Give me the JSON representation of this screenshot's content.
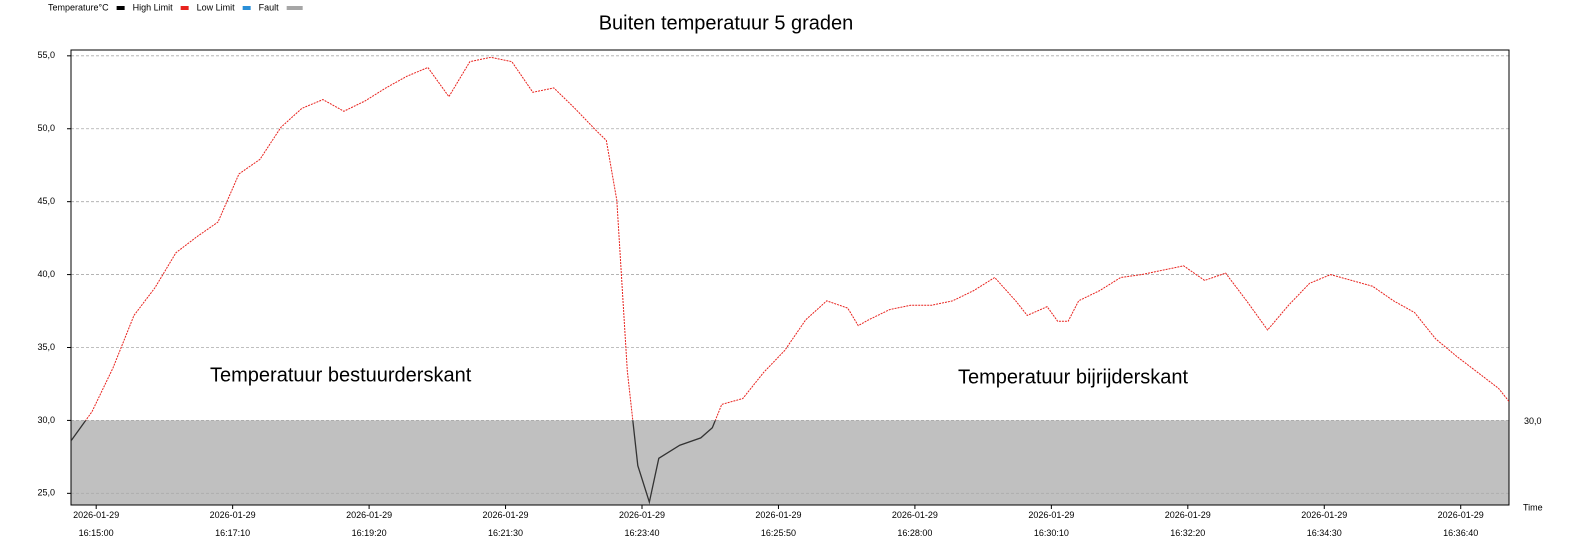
{
  "chart_data": {
    "type": "line",
    "title": "Buiten temperatuur 5 graden",
    "legend": [
      {
        "name": "Temperature°C",
        "color": "#000000"
      },
      {
        "name": "High Limit",
        "color": "#e8231e"
      },
      {
        "name": "Low Limit",
        "color": "#2a8fd8"
      },
      {
        "name": "Fault",
        "color": "#a6a6a6"
      }
    ],
    "annotations": [
      "Temperatuur bestuurderskant",
      "Temperatuur bijrijderskant"
    ],
    "xlabel": "Time",
    "limit": {
      "value": 30,
      "label": "30,0"
    },
    "fault_color": "#c0c0c0",
    "above_color": "#e8231e",
    "below_color": "#333333",
    "x": [
      "16:14:36",
      "16:14:56",
      "16:15:16",
      "16:15:36",
      "16:15:56",
      "16:16:16",
      "16:16:36",
      "16:16:56",
      "16:17:16",
      "16:17:36",
      "16:17:56",
      "16:18:16",
      "16:18:36",
      "16:18:56",
      "16:19:16",
      "16:19:36",
      "16:19:56",
      "16:20:16",
      "16:20:36",
      "16:20:56",
      "16:21:16",
      "16:21:36",
      "16:21:56",
      "16:22:16",
      "16:22:36",
      "16:22:56",
      "16:23:06",
      "16:23:16",
      "16:23:26",
      "16:23:36",
      "16:23:47",
      "16:23:56",
      "16:24:16",
      "16:24:36",
      "16:24:47",
      "16:24:56",
      "16:25:16",
      "16:25:36",
      "16:25:56",
      "16:26:16",
      "16:26:36",
      "16:26:56",
      "16:27:06",
      "16:27:16",
      "16:27:36",
      "16:27:56",
      "16:28:16",
      "16:28:36",
      "16:28:56",
      "16:29:16",
      "16:29:36",
      "16:29:47",
      "16:30:06",
      "16:30:16",
      "16:30:26",
      "16:30:36",
      "16:30:56",
      "16:31:16",
      "16:31:36",
      "16:31:56",
      "16:32:16",
      "16:32:36",
      "16:32:56",
      "16:33:16",
      "16:33:36",
      "16:33:56",
      "16:34:16",
      "16:34:36",
      "16:34:56",
      "16:35:16",
      "16:35:36",
      "16:35:56",
      "16:36:16",
      "16:36:36",
      "16:36:56",
      "16:37:16",
      "16:37:26"
    ],
    "series": [
      {
        "name": "Temperature°C",
        "values": [
          28.6,
          30.6,
          33.6,
          37.2,
          39.1,
          41.5,
          42.6,
          43.6,
          46.9,
          47.9,
          50.1,
          51.4,
          52.0,
          51.2,
          51.9,
          52.8,
          53.6,
          54.2,
          52.2,
          54.6,
          54.9,
          54.6,
          52.5,
          52.8,
          51.4,
          49.9,
          49.2,
          45.1,
          33.4,
          26.9,
          24.4,
          27.4,
          28.3,
          28.8,
          29.5,
          31.1,
          31.5,
          33.3,
          34.8,
          36.9,
          38.2,
          37.7,
          36.5,
          36.9,
          37.6,
          37.9,
          37.9,
          38.2,
          38.9,
          39.8,
          38.2,
          37.2,
          37.8,
          36.8,
          36.8,
          38.2,
          38.9,
          39.8,
          40.0,
          40.3,
          40.6,
          39.6,
          40.1,
          38.2,
          36.2,
          37.9,
          39.4,
          40.0,
          39.6,
          39.2,
          38.2,
          37.4,
          35.6,
          34.4,
          33.3,
          32.2,
          31.3
        ]
      }
    ],
    "xlim": [
      "16:14:36",
      "16:37:26"
    ],
    "xticks": [
      "2026-01-29 16:15:00",
      "2026-01-29 16:17:10",
      "2026-01-29 16:19:20",
      "2026-01-29 16:21:30",
      "2026-01-29 16:23:40",
      "2026-01-29 16:25:50",
      "2026-01-29 16:28:00",
      "2026-01-29 16:30:10",
      "2026-01-29 16:32:20",
      "2026-01-29 16:34:30",
      "2026-01-29 16:36:40"
    ],
    "ylim": [
      24.2,
      55.4
    ],
    "yticks": [
      {
        "value": 25,
        "label": "25,0"
      },
      {
        "value": 30,
        "label": "30,0"
      },
      {
        "value": 35,
        "label": "35,0"
      },
      {
        "value": 40,
        "label": "40,0"
      },
      {
        "value": 45,
        "label": "45,0"
      },
      {
        "value": 50,
        "label": "50,0"
      },
      {
        "value": 55,
        "label": "55,0"
      }
    ],
    "grid": true
  }
}
